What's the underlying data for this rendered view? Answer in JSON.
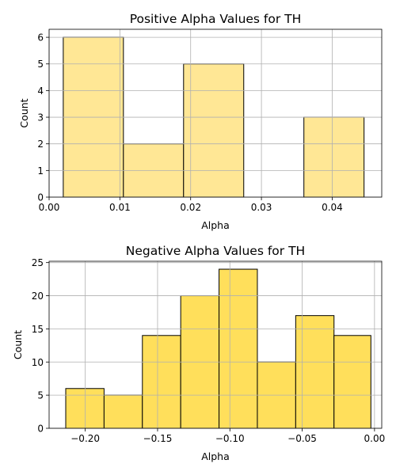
{
  "chart_data": [
    {
      "type": "bar",
      "title": "Positive Alpha Values for TH",
      "xlabel": "Alpha",
      "ylabel": "Count",
      "xlim": [
        0.0,
        0.047
      ],
      "ylim": [
        0,
        6.3
      ],
      "grid": true,
      "bar_color": "#ffe795",
      "edge_color": "#000000",
      "bins": [
        {
          "start": 0.002,
          "end": 0.0105,
          "value": 6
        },
        {
          "start": 0.0105,
          "end": 0.019,
          "value": 2
        },
        {
          "start": 0.019,
          "end": 0.0275,
          "value": 5
        },
        {
          "start": 0.0275,
          "end": 0.036,
          "value": 0
        },
        {
          "start": 0.036,
          "end": 0.0445,
          "value": 3
        }
      ],
      "xticks": [
        0.0,
        0.01,
        0.02,
        0.03,
        0.04
      ],
      "xtick_labels": [
        "0.00",
        "0.01",
        "0.02",
        "0.03",
        "0.04"
      ],
      "yticks": [
        0,
        1,
        2,
        3,
        4,
        5,
        6
      ],
      "ytick_labels": [
        "0",
        "1",
        "2",
        "3",
        "4",
        "5",
        "6"
      ]
    },
    {
      "type": "bar",
      "title": "Negative Alpha Values for TH",
      "xlabel": "Alpha",
      "ylabel": "Count",
      "xlim": [
        -0.225,
        0.005
      ],
      "ylim": [
        0,
        25.2
      ],
      "grid": true,
      "bar_color": "#ffdf5b",
      "edge_color": "#000000",
      "bins": [
        {
          "start": -0.2135,
          "end": -0.187,
          "value": 6
        },
        {
          "start": -0.187,
          "end": -0.1605,
          "value": 5
        },
        {
          "start": -0.1605,
          "end": -0.134,
          "value": 14
        },
        {
          "start": -0.134,
          "end": -0.1075,
          "value": 20
        },
        {
          "start": -0.1075,
          "end": -0.081,
          "value": 24
        },
        {
          "start": -0.081,
          "end": -0.0545,
          "value": 10
        },
        {
          "start": -0.0545,
          "end": -0.028,
          "value": 17
        },
        {
          "start": -0.028,
          "end": -0.0025,
          "value": 14
        }
      ],
      "xticks": [
        -0.2,
        -0.15,
        -0.1,
        -0.05,
        0.0
      ],
      "xtick_labels": [
        "−0.20",
        "−0.15",
        "−0.10",
        "−0.05",
        "0.00"
      ],
      "yticks": [
        0,
        5,
        10,
        15,
        20,
        25
      ],
      "ytick_labels": [
        "0",
        "5",
        "10",
        "15",
        "20",
        "25"
      ]
    }
  ]
}
